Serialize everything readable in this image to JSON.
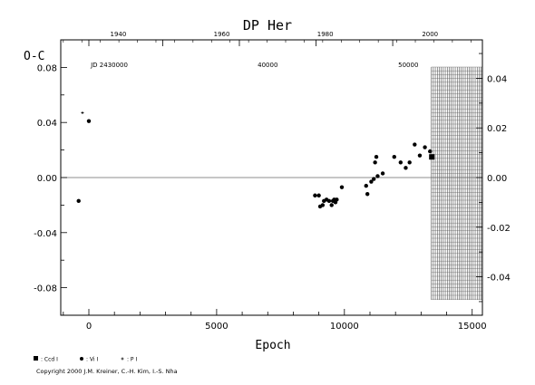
{
  "chart_data": {
    "type": "scatter",
    "title": "DP Her",
    "xlabel": "Epoch",
    "ylabel": "O-C",
    "top_axis_label": "JD 2430000",
    "copyright": "Copyright 2000 J.M. Kreiner, C.-H. Kim, I.-S. Nha",
    "xlim": [
      -1100,
      15400
    ],
    "ylim": [
      -0.1,
      0.1
    ],
    "y2lim": [
      -0.0555,
      0.0555
    ],
    "x_ticks": [
      0,
      5000,
      10000,
      15000
    ],
    "x_tick_labels": [
      "0",
      "5000",
      "10000",
      "15000"
    ],
    "y_ticks": [
      -0.08,
      -0.04,
      0.0,
      0.04,
      0.08
    ],
    "y_tick_labels": [
      "-0.08",
      "-0.04",
      "0.00",
      "0.04",
      "0.08"
    ],
    "y2_ticks": [
      -0.04,
      -0.02,
      0.0,
      0.02,
      0.04
    ],
    "y2_tick_labels": [
      "-0.04",
      "-0.02",
      "0.00",
      "0.02",
      "0.04"
    ],
    "top_year_ticks": [
      0,
      2890,
      5890,
      8890,
      11890
    ],
    "top_year_labels": [
      "1940",
      "1960",
      "1980",
      "2000"
    ],
    "top_year_label_epochs": [
      1150,
      5200,
      9250,
      13350
    ],
    "top_jd_labels": [
      "JD 2430000",
      "40000",
      "50000"
    ],
    "top_jd_label_epochs": [
      800,
      7000,
      12500
    ],
    "hatched_region": [
      13400,
      15400
    ],
    "grid": false,
    "legend_position": "bottom-left",
    "series": [
      {
        "name": ": Ccd I",
        "marker": "square",
        "points": [
          [
            13420,
            0.015
          ]
        ]
      },
      {
        "name": ": Vi I",
        "marker": "circle",
        "points": [
          [
            -400,
            -0.017
          ],
          [
            0,
            0.041
          ],
          [
            8850,
            -0.013
          ],
          [
            9000,
            -0.013
          ],
          [
            9050,
            -0.021
          ],
          [
            9150,
            -0.02
          ],
          [
            9200,
            -0.017
          ],
          [
            9300,
            -0.016
          ],
          [
            9400,
            -0.017
          ],
          [
            9500,
            -0.02
          ],
          [
            9550,
            -0.017
          ],
          [
            9600,
            -0.016
          ],
          [
            9650,
            -0.018
          ],
          [
            9700,
            -0.016
          ],
          [
            9900,
            -0.007
          ],
          [
            10850,
            -0.006
          ],
          [
            10900,
            -0.012
          ],
          [
            11050,
            -0.003
          ],
          [
            11150,
            -0.001
          ],
          [
            11200,
            0.011
          ],
          [
            11250,
            0.015
          ],
          [
            11300,
            0.001
          ],
          [
            11500,
            0.003
          ],
          [
            11950,
            0.015
          ],
          [
            12200,
            0.011
          ],
          [
            12400,
            0.007
          ],
          [
            12550,
            0.011
          ],
          [
            12750,
            0.024
          ],
          [
            12950,
            0.016
          ],
          [
            13150,
            0.022
          ],
          [
            13350,
            0.019
          ]
        ]
      },
      {
        "name": ": P I",
        "marker": "plus",
        "points": [
          [
            -250,
            0.047
          ]
        ]
      }
    ]
  }
}
